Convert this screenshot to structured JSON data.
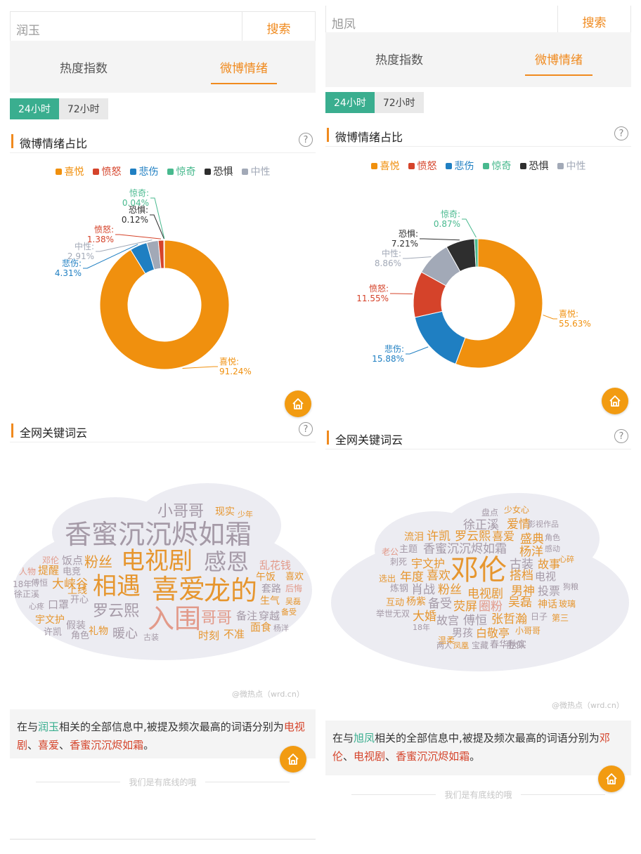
{
  "colors": {
    "joy": "#f0900e",
    "anger": "#d5432a",
    "sad": "#1f7fc2",
    "surprise": "#48b98e",
    "fear": "#2e2e2e",
    "neutral": "#a2a9b7",
    "accent": "#f08a1e",
    "green": "#3aae8f"
  },
  "legend": [
    {
      "key": "joy",
      "label": "喜悦"
    },
    {
      "key": "anger",
      "label": "愤怒"
    },
    {
      "key": "sad",
      "label": "悲伤"
    },
    {
      "key": "surprise",
      "label": "惊奇"
    },
    {
      "key": "fear",
      "label": "恐惧"
    },
    {
      "key": "neutral",
      "label": "中性"
    }
  ],
  "ui": {
    "search_label": "搜索",
    "tab_heat": "热度指数",
    "tab_mood": "微博情绪",
    "time_24h": "24小时",
    "time_72h": "72小时",
    "section_mood": "微博情绪占比",
    "section_cloud": "全网关键词云",
    "help": "?",
    "credit": "@微热点（wrd.cn）",
    "footer": "我们是有底线的哦",
    "summary_pre": "在与",
    "summary_mid": "相关的全部信息中,被提及频次最高的词语分别为",
    "sep": "、",
    "end": "。"
  },
  "left": {
    "query": "润玉",
    "mood_slices": [
      {
        "key": "joy",
        "label": "喜悦",
        "value": 91.24,
        "text": "喜悦:",
        "pct": "91.24%"
      },
      {
        "key": "sad",
        "label": "悲伤",
        "value": 4.31,
        "text": "悲伤:",
        "pct": "4.31%"
      },
      {
        "key": "neutral",
        "label": "中性",
        "value": 2.91,
        "text": "中性:",
        "pct": "2.91%"
      },
      {
        "key": "anger",
        "label": "愤怒",
        "value": 1.38,
        "text": "愤怒:",
        "pct": "1.38%"
      },
      {
        "key": "fear",
        "label": "恐惧",
        "value": 0.12,
        "text": "恐惧:",
        "pct": "0.12%"
      },
      {
        "key": "surprise",
        "label": "惊奇",
        "value": 0.04,
        "text": "惊奇:",
        "pct": "0.04%"
      }
    ],
    "top_words": [
      "电视剧",
      "喜爱",
      "香蜜沉沉烬如霜"
    ],
    "cloud_words": [
      {
        "w": "小哥哥",
        "c": "#a59aa7"
      },
      {
        "w": "现实",
        "c": "#e6962f"
      },
      {
        "w": "少年",
        "c": "#e6962f"
      },
      {
        "w": "香蜜沉沉烬如霜",
        "c": "#a59aa7"
      },
      {
        "w": "邓伦",
        "c": "#e29a8a"
      },
      {
        "w": "饭点",
        "c": "#a59aa7"
      },
      {
        "w": "粉丝",
        "c": "#e6962f"
      },
      {
        "w": "电视剧",
        "c": "#e6962f"
      },
      {
        "w": "感恩",
        "c": "#a59aa7"
      },
      {
        "w": "乱花钱",
        "c": "#e29a8a"
      },
      {
        "w": "人物",
        "c": "#e29a8a"
      },
      {
        "w": "提醒",
        "c": "#e6962f"
      },
      {
        "w": "电竞",
        "c": "#a59aa7"
      },
      {
        "w": "午饭",
        "c": "#e6962f"
      },
      {
        "w": "喜欢",
        "c": "#e6962f"
      },
      {
        "w": "18年",
        "c": "#a59aa7"
      },
      {
        "w": "傅恒",
        "c": "#a59aa7"
      },
      {
        "w": "大峡谷",
        "c": "#e6962f"
      },
      {
        "w": "相遇",
        "c": "#e6962f"
      },
      {
        "w": "喜爱",
        "c": "#e6962f"
      },
      {
        "w": "龙的",
        "c": "#e6962f"
      },
      {
        "w": "套路",
        "c": "#a59aa7"
      },
      {
        "w": "后悔",
        "c": "#e29a8a"
      },
      {
        "w": "徐正溪",
        "c": "#a59aa7"
      },
      {
        "w": "上线",
        "c": "#e6962f"
      },
      {
        "w": "开心",
        "c": "#a59aa7"
      },
      {
        "w": "生气",
        "c": "#e6962f"
      },
      {
        "w": "吴磊",
        "c": "#e6962f"
      },
      {
        "w": "心疼",
        "c": "#a59aa7"
      },
      {
        "w": "口罩",
        "c": "#a59aa7"
      },
      {
        "w": "罗云熙",
        "c": "#a59aa7"
      },
      {
        "w": "入围",
        "c": "#e29a8a"
      },
      {
        "w": "哥哥",
        "c": "#e29a8a"
      },
      {
        "w": "备注",
        "c": "#a59aa7"
      },
      {
        "w": "穿越",
        "c": "#a59aa7"
      },
      {
        "w": "备受",
        "c": "#e6962f"
      },
      {
        "w": "宇文护",
        "c": "#e6962f"
      },
      {
        "w": "假装",
        "c": "#a59aa7"
      },
      {
        "w": "面食",
        "c": "#e6962f"
      },
      {
        "w": "杨洋",
        "c": "#a59aa7"
      },
      {
        "w": "许凯",
        "c": "#a59aa7"
      },
      {
        "w": "礼物",
        "c": "#e6962f"
      },
      {
        "w": "暖心",
        "c": "#a59aa7"
      },
      {
        "w": "不准",
        "c": "#e6962f"
      },
      {
        "w": "角色",
        "c": "#a59aa7"
      },
      {
        "w": "古装",
        "c": "#a59aa7"
      },
      {
        "w": "时刻",
        "c": "#e6962f"
      }
    ]
  },
  "right": {
    "query": "旭凤",
    "mood_slices": [
      {
        "key": "joy",
        "label": "喜悦",
        "value": 55.63,
        "text": "喜悦:",
        "pct": "55.63%"
      },
      {
        "key": "sad",
        "label": "悲伤",
        "value": 15.88,
        "text": "悲伤:",
        "pct": "15.88%"
      },
      {
        "key": "anger",
        "label": "愤怒",
        "value": 11.55,
        "text": "愤怒:",
        "pct": "11.55%"
      },
      {
        "key": "neutral",
        "label": "中性",
        "value": 8.86,
        "text": "中性:",
        "pct": "8.86%"
      },
      {
        "key": "fear",
        "label": "恐惧",
        "value": 7.21,
        "text": "恐惧:",
        "pct": "7.21%"
      },
      {
        "key": "surprise",
        "label": "惊奇",
        "value": 0.87,
        "text": "惊奇:",
        "pct": "0.87%"
      }
    ],
    "top_words": [
      "邓伦",
      "电视剧",
      "香蜜沉沉烬如霜"
    ],
    "cloud_words": [
      {
        "w": "盘点",
        "c": "#a59aa7"
      },
      {
        "w": "少女心",
        "c": "#e6962f"
      },
      {
        "w": "徐正溪",
        "c": "#a59aa7"
      },
      {
        "w": "爱情",
        "c": "#e6962f"
      },
      {
        "w": "影视作品",
        "c": "#a59aa7"
      },
      {
        "w": "流泪",
        "c": "#e6962f"
      },
      {
        "w": "许凯",
        "c": "#e6962f"
      },
      {
        "w": "罗云熙",
        "c": "#e6962f"
      },
      {
        "w": "喜爱",
        "c": "#e6962f"
      },
      {
        "w": "盛典",
        "c": "#e6962f"
      },
      {
        "w": "角色",
        "c": "#a59aa7"
      },
      {
        "w": "老公",
        "c": "#e29a8a"
      },
      {
        "w": "主题",
        "c": "#a59aa7"
      },
      {
        "w": "香蜜沉沉烬如霜",
        "c": "#a59aa7"
      },
      {
        "w": "杨洋",
        "c": "#e6962f"
      },
      {
        "w": "感动",
        "c": "#a59aa7"
      },
      {
        "w": "刺死",
        "c": "#a59aa7"
      },
      {
        "w": "宇文护",
        "c": "#e6962f"
      },
      {
        "w": "邓伦",
        "c": "#e6962f"
      },
      {
        "w": "古装",
        "c": "#a59aa7"
      },
      {
        "w": "故事",
        "c": "#e6962f"
      },
      {
        "w": "心碎",
        "c": "#e6962f"
      },
      {
        "w": "选出",
        "c": "#e6962f"
      },
      {
        "w": "年度",
        "c": "#e6962f"
      },
      {
        "w": "喜欢",
        "c": "#e6962f"
      },
      {
        "w": "搭档",
        "c": "#e6962f"
      },
      {
        "w": "电视",
        "c": "#a59aa7"
      },
      {
        "w": "炼钢",
        "c": "#a59aa7"
      },
      {
        "w": "肖战",
        "c": "#a59aa7"
      },
      {
        "w": "粉丝",
        "c": "#e6962f"
      },
      {
        "w": "电视剧",
        "c": "#e6962f"
      },
      {
        "w": "男神",
        "c": "#e6962f"
      },
      {
        "w": "投票",
        "c": "#a59aa7"
      },
      {
        "w": "狗粮",
        "c": "#a59aa7"
      },
      {
        "w": "互动",
        "c": "#e6962f"
      },
      {
        "w": "杨紫",
        "c": "#e6962f"
      },
      {
        "w": "备受",
        "c": "#a59aa7"
      },
      {
        "w": "荧屏",
        "c": "#e6962f"
      },
      {
        "w": "圈粉",
        "c": "#e29a8a"
      },
      {
        "w": "吴磊",
        "c": "#e6962f"
      },
      {
        "w": "神话",
        "c": "#e6962f"
      },
      {
        "w": "玻璃",
        "c": "#e6962f"
      },
      {
        "w": "举世无双",
        "c": "#a59aa7"
      },
      {
        "w": "大婚",
        "c": "#e6962f"
      },
      {
        "w": "故宫",
        "c": "#a59aa7"
      },
      {
        "w": "傅恒",
        "c": "#a59aa7"
      },
      {
        "w": "张哲瀚",
        "c": "#e6962f"
      },
      {
        "w": "日子",
        "c": "#a59aa7"
      },
      {
        "w": "第三",
        "c": "#e6962f"
      },
      {
        "w": "18年",
        "c": "#a59aa7"
      },
      {
        "w": "男孩",
        "c": "#a59aa7"
      },
      {
        "w": "白敬亭",
        "c": "#e6962f"
      },
      {
        "w": "小哥哥",
        "c": "#e6962f"
      },
      {
        "w": "温柔",
        "c": "#e6962f"
      },
      {
        "w": "两人",
        "c": "#a59aa7"
      },
      {
        "w": "凤凰",
        "c": "#e6962f"
      },
      {
        "w": "宝藏",
        "c": "#a59aa7"
      },
      {
        "w": "春华秋实",
        "c": "#a59aa7"
      },
      {
        "w": "胜似",
        "c": "#a59aa7"
      }
    ]
  }
}
